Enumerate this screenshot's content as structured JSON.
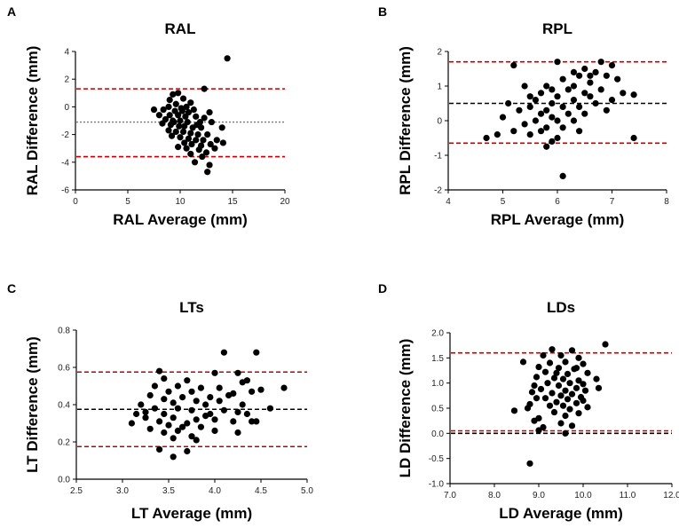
{
  "chart_data": [
    {
      "panel": "A",
      "type": "scatter",
      "title": "RAL",
      "xlabel": "RAL Average (mm)",
      "ylabel": "RAL Difference (mm)",
      "xlim": [
        0,
        20
      ],
      "ylim": [
        -6,
        4
      ],
      "xticks": [
        0,
        5,
        10,
        15,
        20
      ],
      "yticks": [
        -6,
        -4,
        -2,
        0,
        2,
        4
      ],
      "tick_decimals": 0,
      "grid": false,
      "lines": [
        {
          "name": "upper-limit",
          "y": 1.3,
          "color": "#c00000",
          "style": "dashed"
        },
        {
          "name": "mean-bias",
          "y": -1.1,
          "color": "#777777",
          "style": "dotted"
        },
        {
          "name": "lower-limit",
          "y": -3.6,
          "color": "#c00000",
          "style": "dashed"
        }
      ],
      "points": [
        [
          14.5,
          3.5
        ],
        [
          12.3,
          1.3
        ],
        [
          9.3,
          0.9
        ],
        [
          9.8,
          1.0
        ],
        [
          10.3,
          0.6
        ],
        [
          9.0,
          0.5
        ],
        [
          11.0,
          0.3
        ],
        [
          9.6,
          0.2
        ],
        [
          8.9,
          0.0
        ],
        [
          10.6,
          0.0
        ],
        [
          11.3,
          -0.2
        ],
        [
          8.4,
          -0.2
        ],
        [
          9.5,
          -0.3
        ],
        [
          10.2,
          -0.3
        ],
        [
          10.8,
          -0.4
        ],
        [
          12.8,
          -0.4
        ],
        [
          7.5,
          -0.2
        ],
        [
          8.0,
          -0.6
        ],
        [
          9.0,
          -0.6
        ],
        [
          9.8,
          -0.6
        ],
        [
          10.5,
          -0.7
        ],
        [
          11.5,
          -0.7
        ],
        [
          12.3,
          -0.8
        ],
        [
          8.6,
          -0.9
        ],
        [
          9.3,
          -1.0
        ],
        [
          10.0,
          -1.0
        ],
        [
          10.7,
          -1.1
        ],
        [
          11.9,
          -1.1
        ],
        [
          13.0,
          -1.1
        ],
        [
          8.3,
          -1.2
        ],
        [
          9.1,
          -1.3
        ],
        [
          9.9,
          -1.4
        ],
        [
          10.4,
          -1.4
        ],
        [
          11.2,
          -1.5
        ],
        [
          12.0,
          -1.5
        ],
        [
          14.0,
          -1.5
        ],
        [
          8.9,
          -1.7
        ],
        [
          9.6,
          -1.8
        ],
        [
          10.3,
          -1.8
        ],
        [
          11.0,
          -1.9
        ],
        [
          11.7,
          -2.0
        ],
        [
          12.6,
          -2.0
        ],
        [
          9.2,
          -2.1
        ],
        [
          10.0,
          -2.2
        ],
        [
          10.8,
          -2.3
        ],
        [
          11.5,
          -2.4
        ],
        [
          12.2,
          -2.4
        ],
        [
          13.5,
          -2.4
        ],
        [
          10.4,
          -2.6
        ],
        [
          11.1,
          -2.7
        ],
        [
          12.0,
          -2.8
        ],
        [
          14.1,
          -2.6
        ],
        [
          9.8,
          -2.9
        ],
        [
          10.6,
          -3.0
        ],
        [
          11.8,
          -3.1
        ],
        [
          12.5,
          -3.3
        ],
        [
          11.0,
          -3.4
        ],
        [
          12.1,
          -3.6
        ],
        [
          11.4,
          -4.0
        ],
        [
          12.8,
          -4.2
        ],
        [
          12.6,
          -4.7
        ],
        [
          13.3,
          -3.0
        ],
        [
          9.4,
          -1.1
        ],
        [
          10.1,
          -0.1
        ],
        [
          11.6,
          -1.3
        ],
        [
          12.9,
          -2.7
        ]
      ]
    },
    {
      "panel": "B",
      "type": "scatter",
      "title": "RPL",
      "xlabel": "RPL Average (mm)",
      "ylabel": "RPL Difference (mm)",
      "xlim": [
        4,
        8
      ],
      "ylim": [
        -2,
        2
      ],
      "xticks": [
        4,
        5,
        6,
        7,
        8
      ],
      "yticks": [
        -2,
        -1,
        0,
        1,
        2
      ],
      "tick_decimals": 0,
      "grid": false,
      "lines": [
        {
          "name": "upper-limit",
          "y": 1.7,
          "color": "#c00000",
          "style": "dashed"
        },
        {
          "name": "mean-bias",
          "y": 0.5,
          "color": "#000000",
          "style": "dashed"
        },
        {
          "name": "lower-limit",
          "y": -0.65,
          "color": "#c00000",
          "style": "dashed"
        }
      ],
      "points": [
        [
          5.2,
          1.6
        ],
        [
          6.0,
          1.7
        ],
        [
          6.8,
          1.7
        ],
        [
          7.0,
          1.6
        ],
        [
          6.5,
          1.5
        ],
        [
          6.7,
          1.4
        ],
        [
          6.4,
          1.3
        ],
        [
          6.9,
          1.3
        ],
        [
          7.1,
          1.2
        ],
        [
          6.1,
          1.2
        ],
        [
          6.6,
          1.1
        ],
        [
          6.3,
          1.0
        ],
        [
          5.8,
          1.0
        ],
        [
          6.8,
          0.9
        ],
        [
          5.4,
          1.0
        ],
        [
          5.9,
          0.9
        ],
        [
          6.2,
          0.9
        ],
        [
          6.5,
          0.8
        ],
        [
          5.7,
          0.8
        ],
        [
          7.2,
          0.8
        ],
        [
          7.4,
          0.75
        ],
        [
          6.0,
          0.7
        ],
        [
          6.6,
          0.7
        ],
        [
          5.6,
          0.6
        ],
        [
          6.3,
          0.6
        ],
        [
          5.9,
          0.5
        ],
        [
          6.7,
          0.5
        ],
        [
          5.1,
          0.5
        ],
        [
          6.1,
          0.4
        ],
        [
          5.5,
          0.4
        ],
        [
          6.4,
          0.4
        ],
        [
          5.8,
          0.3
        ],
        [
          6.9,
          0.3
        ],
        [
          5.3,
          0.3
        ],
        [
          6.2,
          0.2
        ],
        [
          5.7,
          0.2
        ],
        [
          6.5,
          0.2
        ],
        [
          5.0,
          0.1
        ],
        [
          5.9,
          0.1
        ],
        [
          6.0,
          0.0
        ],
        [
          5.6,
          0.0
        ],
        [
          6.3,
          0.0
        ],
        [
          5.4,
          -0.1
        ],
        [
          5.8,
          -0.2
        ],
        [
          6.1,
          -0.2
        ],
        [
          5.2,
          -0.3
        ],
        [
          5.7,
          -0.3
        ],
        [
          6.4,
          -0.3
        ],
        [
          4.9,
          -0.4
        ],
        [
          5.5,
          -0.4
        ],
        [
          6.0,
          -0.5
        ],
        [
          4.7,
          -0.5
        ],
        [
          7.4,
          -0.5
        ],
        [
          5.9,
          -0.6
        ],
        [
          5.8,
          -0.75
        ],
        [
          6.1,
          -1.6
        ],
        [
          6.6,
          1.3
        ],
        [
          7.0,
          0.6
        ],
        [
          5.5,
          0.7
        ],
        [
          6.3,
          1.4
        ]
      ]
    },
    {
      "panel": "C",
      "type": "scatter",
      "title": "LTs",
      "xlabel": "LT Average (mm)",
      "ylabel": "LT Difference (mm)",
      "xlim": [
        2.5,
        5.0
      ],
      "ylim": [
        0.0,
        0.8
      ],
      "xticks": [
        2.5,
        3.0,
        3.5,
        4.0,
        4.5,
        5.0
      ],
      "yticks": [
        0.0,
        0.2,
        0.4,
        0.6,
        0.8
      ],
      "tick_decimals": 1,
      "grid": false,
      "lines": [
        {
          "name": "upper-limit",
          "y": 0.575,
          "color": "#c00000",
          "style": "dashed"
        },
        {
          "name": "mean-bias",
          "y": 0.375,
          "color": "#000000",
          "style": "dashed"
        },
        {
          "name": "lower-limit",
          "y": 0.175,
          "color": "#c00000",
          "style": "dashed"
        }
      ],
      "points": [
        [
          4.1,
          0.68
        ],
        [
          4.45,
          0.68
        ],
        [
          3.4,
          0.58
        ],
        [
          4.0,
          0.57
        ],
        [
          4.25,
          0.57
        ],
        [
          3.45,
          0.54
        ],
        [
          3.7,
          0.53
        ],
        [
          4.35,
          0.53
        ],
        [
          4.3,
          0.52
        ],
        [
          3.35,
          0.5
        ],
        [
          3.6,
          0.5
        ],
        [
          3.85,
          0.49
        ],
        [
          4.05,
          0.49
        ],
        [
          4.5,
          0.48
        ],
        [
          4.75,
          0.49
        ],
        [
          3.5,
          0.47
        ],
        [
          3.75,
          0.47
        ],
        [
          4.2,
          0.46
        ],
        [
          4.4,
          0.47
        ],
        [
          3.3,
          0.45
        ],
        [
          3.65,
          0.44
        ],
        [
          3.95,
          0.44
        ],
        [
          4.15,
          0.45
        ],
        [
          3.45,
          0.43
        ],
        [
          3.8,
          0.42
        ],
        [
          4.05,
          0.42
        ],
        [
          3.55,
          0.41
        ],
        [
          3.2,
          0.4
        ],
        [
          3.9,
          0.4
        ],
        [
          4.3,
          0.4
        ],
        [
          3.35,
          0.38
        ],
        [
          3.6,
          0.38
        ],
        [
          3.75,
          0.37
        ],
        [
          4.1,
          0.37
        ],
        [
          4.25,
          0.36
        ],
        [
          3.15,
          0.35
        ],
        [
          3.45,
          0.35
        ],
        [
          3.95,
          0.35
        ],
        [
          4.35,
          0.35
        ],
        [
          3.25,
          0.33
        ],
        [
          3.55,
          0.33
        ],
        [
          3.8,
          0.32
        ],
        [
          4.0,
          0.32
        ],
        [
          3.4,
          0.31
        ],
        [
          3.7,
          0.3
        ],
        [
          4.2,
          0.31
        ],
        [
          4.4,
          0.31
        ],
        [
          4.45,
          0.31
        ],
        [
          3.1,
          0.3
        ],
        [
          3.5,
          0.29
        ],
        [
          3.65,
          0.28
        ],
        [
          3.85,
          0.28
        ],
        [
          3.3,
          0.27
        ],
        [
          3.6,
          0.26
        ],
        [
          4.0,
          0.26
        ],
        [
          3.45,
          0.25
        ],
        [
          4.25,
          0.25
        ],
        [
          3.75,
          0.23
        ],
        [
          3.55,
          0.22
        ],
        [
          3.8,
          0.21
        ],
        [
          3.4,
          0.16
        ],
        [
          3.7,
          0.15
        ],
        [
          3.55,
          0.12
        ],
        [
          3.9,
          0.34
        ],
        [
          4.6,
          0.38
        ],
        [
          3.25,
          0.36
        ]
      ]
    },
    {
      "panel": "D",
      "type": "scatter",
      "title": "LDs",
      "xlabel": "LD Average (mm)",
      "ylabel": "LD Difference (mm)",
      "xlim": [
        7,
        12
      ],
      "ylim": [
        -1.0,
        2.0
      ],
      "xticks": [
        7,
        8,
        9,
        10,
        11,
        12
      ],
      "yticks": [
        -1.0,
        -0.5,
        0.0,
        0.5,
        1.0,
        1.5,
        2.0
      ],
      "tick_decimals": 1,
      "grid": false,
      "lines": [
        {
          "name": "upper-limit",
          "y": 1.6,
          "color": "#c00000",
          "style": "dashed"
        },
        {
          "name": "mean-bias",
          "y": 0.05,
          "color": "#c00000",
          "style": "dashed"
        },
        {
          "name": "zero-line",
          "y": 0.0,
          "color": "#000000",
          "style": "dashed"
        }
      ],
      "points": [
        [
          10.5,
          1.77
        ],
        [
          9.3,
          1.67
        ],
        [
          9.75,
          1.65
        ],
        [
          9.1,
          1.55
        ],
        [
          9.5,
          1.55
        ],
        [
          9.9,
          1.5
        ],
        [
          8.65,
          1.42
        ],
        [
          9.25,
          1.4
        ],
        [
          9.6,
          1.42
        ],
        [
          10.0,
          1.38
        ],
        [
          9.0,
          1.32
        ],
        [
          9.45,
          1.3
        ],
        [
          9.8,
          1.28
        ],
        [
          9.15,
          1.22
        ],
        [
          9.65,
          1.18
        ],
        [
          10.1,
          1.2
        ],
        [
          8.95,
          1.12
        ],
        [
          9.35,
          1.1
        ],
        [
          9.55,
          1.08
        ],
        [
          9.9,
          1.05
        ],
        [
          10.3,
          1.08
        ],
        [
          9.2,
          1.0
        ],
        [
          9.7,
          1.0
        ],
        [
          10.0,
          0.98
        ],
        [
          8.9,
          0.95
        ],
        [
          9.45,
          0.95
        ],
        [
          9.85,
          0.9
        ],
        [
          10.35,
          0.9
        ],
        [
          9.05,
          0.88
        ],
        [
          9.6,
          0.85
        ],
        [
          10.05,
          0.85
        ],
        [
          8.85,
          0.82
        ],
        [
          9.3,
          0.8
        ],
        [
          9.75,
          0.78
        ],
        [
          9.5,
          0.75
        ],
        [
          9.95,
          0.72
        ],
        [
          9.15,
          0.7
        ],
        [
          9.65,
          0.68
        ],
        [
          10.0,
          0.65
        ],
        [
          9.4,
          0.62
        ],
        [
          9.85,
          0.6
        ],
        [
          8.8,
          0.58
        ],
        [
          9.25,
          0.55
        ],
        [
          9.55,
          0.55
        ],
        [
          10.1,
          0.52
        ],
        [
          8.75,
          0.5
        ],
        [
          9.7,
          0.48
        ],
        [
          8.45,
          0.45
        ],
        [
          9.35,
          0.42
        ],
        [
          9.9,
          0.4
        ],
        [
          9.6,
          0.35
        ],
        [
          9.0,
          0.3
        ],
        [
          8.9,
          0.25
        ],
        [
          9.5,
          0.2
        ],
        [
          9.75,
          0.15
        ],
        [
          9.1,
          0.12
        ],
        [
          9.0,
          0.06
        ],
        [
          9.6,
          0.0
        ],
        [
          8.8,
          -0.6
        ],
        [
          9.85,
          1.3
        ],
        [
          9.4,
          1.2
        ],
        [
          8.95,
          0.7
        ]
      ]
    }
  ]
}
